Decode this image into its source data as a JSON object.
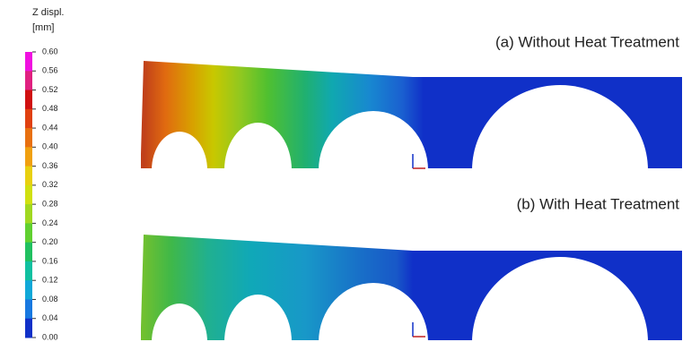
{
  "colorbar": {
    "title": "Z displ.",
    "unit": "[mm]",
    "ticks": [
      {
        "value": 0.6,
        "label": "0.60"
      },
      {
        "value": 0.56,
        "label": "0.56"
      },
      {
        "value": 0.52,
        "label": "0.52"
      },
      {
        "value": 0.48,
        "label": "0.48"
      },
      {
        "value": 0.44,
        "label": "0.44"
      },
      {
        "value": 0.4,
        "label": "0.40"
      },
      {
        "value": 0.36,
        "label": "0.36"
      },
      {
        "value": 0.32,
        "label": "0.32"
      },
      {
        "value": 0.28,
        "label": "0.28"
      },
      {
        "value": 0.24,
        "label": "0.24"
      },
      {
        "value": 0.2,
        "label": "0.20"
      },
      {
        "value": 0.16,
        "label": "0.16"
      },
      {
        "value": 0.12,
        "label": "0.12"
      },
      {
        "value": 0.08,
        "label": "0.08"
      },
      {
        "value": 0.04,
        "label": "0.04"
      },
      {
        "value": 0,
        "label": "0.00"
      }
    ],
    "colors": [
      "#f010e0",
      "#e02080",
      "#d01010",
      "#e04010",
      "#e87010",
      "#f0a010",
      "#e8d010",
      "#d0e010",
      "#a0d820",
      "#60d030",
      "#20c060",
      "#10c0a0",
      "#10a8d8",
      "#1878e0",
      "#1030c8"
    ]
  },
  "panels": [
    {
      "label": "(a) Without Heat Treatment"
    },
    {
      "label": "(b) With Heat Treatment"
    }
  ]
}
